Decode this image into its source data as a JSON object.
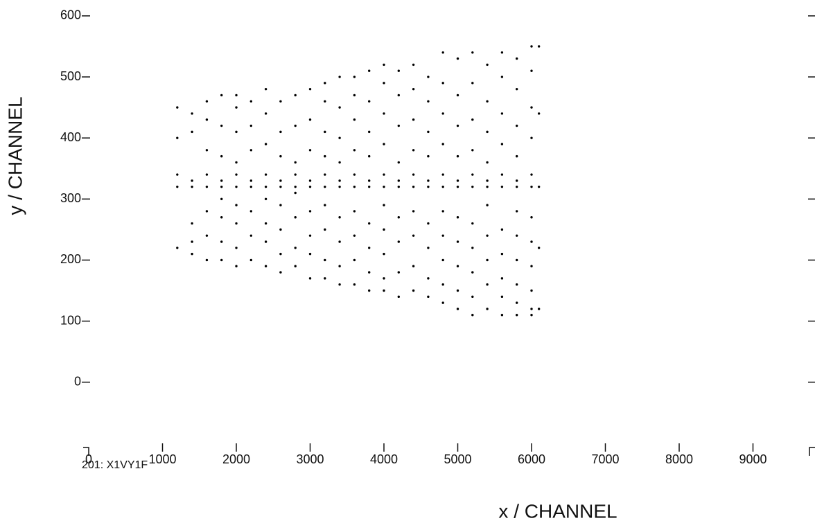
{
  "chart_data": {
    "type": "scatter",
    "x_label": "x / CHANNEL",
    "y_label": "y / CHANNEL",
    "note": "201: X1VY1F",
    "color": "#000000",
    "xlim": [
      0,
      9784
    ],
    "ylim": [
      -107,
      626
    ],
    "xticks": [
      0,
      1000,
      2000,
      3000,
      4000,
      5000,
      6000,
      7000,
      8000,
      9000
    ],
    "yticks": [
      0,
      100,
      200,
      300,
      400,
      500,
      600
    ],
    "x": [
      1200,
      1200,
      1200,
      1200,
      1200,
      1400,
      1400,
      1400,
      1400,
      1400,
      1400,
      1400,
      1600,
      1600,
      1600,
      1600,
      1600,
      1600,
      1600,
      1600,
      1800,
      1800,
      1800,
      1800,
      1800,
      1800,
      1800,
      1800,
      1800,
      2000,
      2000,
      2000,
      2000,
      2000,
      2000,
      2000,
      2000,
      2000,
      2000,
      2200,
      2200,
      2200,
      2200,
      2200,
      2200,
      2200,
      2200,
      2400,
      2400,
      2400,
      2400,
      2400,
      2400,
      2400,
      2400,
      2400,
      2600,
      2600,
      2600,
      2600,
      2600,
      2600,
      2600,
      2600,
      2600,
      2800,
      2800,
      2800,
      2800,
      2800,
      2800,
      2800,
      2800,
      2800,
      3000,
      3000,
      3000,
      3000,
      3000,
      3000,
      3000,
      3000,
      3000,
      3200,
      3200,
      3200,
      3200,
      3200,
      3200,
      3200,
      3200,
      3200,
      3200,
      3400,
      3400,
      3400,
      3400,
      3400,
      3400,
      3400,
      3400,
      3400,
      3400,
      3600,
      3600,
      3600,
      3600,
      3600,
      3600,
      3600,
      3600,
      3600,
      3600,
      3800,
      3800,
      3800,
      3800,
      3800,
      3800,
      3800,
      3800,
      3800,
      3800,
      4000,
      4000,
      4000,
      4000,
      4000,
      4000,
      4000,
      4000,
      4000,
      4000,
      4000,
      4200,
      4200,
      4200,
      4200,
      4200,
      4200,
      4200,
      4200,
      4200,
      4200,
      4400,
      4400,
      4400,
      4400,
      4400,
      4400,
      4400,
      4400,
      4400,
      4400,
      4600,
      4600,
      4600,
      4600,
      4600,
      4600,
      4600,
      4600,
      4600,
      4600,
      4800,
      4800,
      4800,
      4800,
      4800,
      4800,
      4800,
      4800,
      4800,
      4800,
      4800,
      5000,
      5000,
      5000,
      5000,
      5000,
      5000,
      5000,
      5000,
      5000,
      5000,
      5000,
      5200,
      5200,
      5200,
      5200,
      5200,
      5200,
      5200,
      5200,
      5200,
      5200,
      5200,
      5400,
      5400,
      5400,
      5400,
      5400,
      5400,
      5400,
      5400,
      5400,
      5400,
      5400,
      5600,
      5600,
      5600,
      5600,
      5600,
      5600,
      5600,
      5600,
      5600,
      5600,
      5600,
      5800,
      5800,
      5800,
      5800,
      5800,
      5800,
      5800,
      5800,
      5800,
      5800,
      5800,
      5800,
      6000,
      6000,
      6000,
      6000,
      6000,
      6000,
      6000,
      6000,
      6000,
      6000,
      6000,
      6000,
      6100,
      6100,
      6100,
      6100,
      6100
    ],
    "y": [
      220,
      320,
      340,
      400,
      450,
      210,
      230,
      260,
      320,
      330,
      410,
      440,
      200,
      240,
      280,
      320,
      340,
      380,
      430,
      460,
      200,
      230,
      270,
      300,
      320,
      330,
      370,
      420,
      470,
      190,
      220,
      260,
      290,
      320,
      340,
      360,
      410,
      450,
      470,
      200,
      240,
      280,
      320,
      330,
      380,
      420,
      460,
      190,
      230,
      260,
      300,
      320,
      340,
      390,
      440,
      480,
      180,
      210,
      250,
      290,
      320,
      330,
      370,
      410,
      460,
      190,
      220,
      270,
      310,
      320,
      340,
      360,
      420,
      470,
      170,
      210,
      240,
      280,
      320,
      330,
      380,
      430,
      480,
      170,
      200,
      250,
      290,
      320,
      340,
      370,
      410,
      460,
      490,
      160,
      190,
      230,
      270,
      320,
      330,
      360,
      400,
      450,
      500,
      160,
      200,
      240,
      280,
      320,
      340,
      380,
      430,
      470,
      500,
      150,
      180,
      220,
      260,
      320,
      330,
      370,
      410,
      460,
      510,
      150,
      170,
      210,
      250,
      290,
      320,
      340,
      390,
      440,
      490,
      520,
      140,
      180,
      230,
      270,
      320,
      330,
      360,
      420,
      470,
      510,
      150,
      190,
      240,
      280,
      320,
      340,
      380,
      430,
      480,
      520,
      140,
      170,
      220,
      260,
      320,
      330,
      370,
      410,
      460,
      500,
      130,
      160,
      200,
      240,
      280,
      320,
      340,
      390,
      440,
      490,
      540,
      120,
      150,
      190,
      230,
      270,
      320,
      330,
      370,
      420,
      470,
      530,
      110,
      140,
      180,
      220,
      260,
      320,
      340,
      380,
      430,
      490,
      540,
      120,
      160,
      200,
      240,
      290,
      320,
      330,
      360,
      410,
      460,
      520,
      110,
      140,
      170,
      210,
      250,
      320,
      340,
      390,
      440,
      500,
      540,
      110,
      130,
      160,
      200,
      240,
      280,
      320,
      330,
      370,
      420,
      480,
      530,
      110,
      120,
      150,
      190,
      230,
      270,
      320,
      340,
      400,
      450,
      510,
      550,
      120,
      220,
      320,
      440,
      550
    ]
  }
}
